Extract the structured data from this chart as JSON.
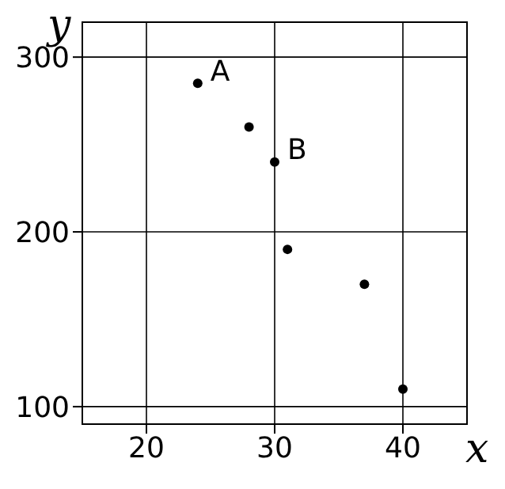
{
  "chart_data": {
    "type": "scatter",
    "xlabel": "x",
    "ylabel": "y",
    "x": [
      24,
      28,
      30,
      31,
      37,
      40
    ],
    "values": [
      285,
      260,
      240,
      190,
      170,
      110
    ],
    "color": "#000000",
    "marker": "circle",
    "xlim": [
      15,
      45
    ],
    "xticks": [
      20,
      30,
      40
    ],
    "ylim": [
      90,
      320
    ],
    "yticks": [
      100,
      200,
      300
    ],
    "grid": true,
    "annotations": [
      {
        "text": "A",
        "x": 24,
        "y": 285
      },
      {
        "text": "B",
        "x": 30,
        "y": 240
      }
    ]
  }
}
